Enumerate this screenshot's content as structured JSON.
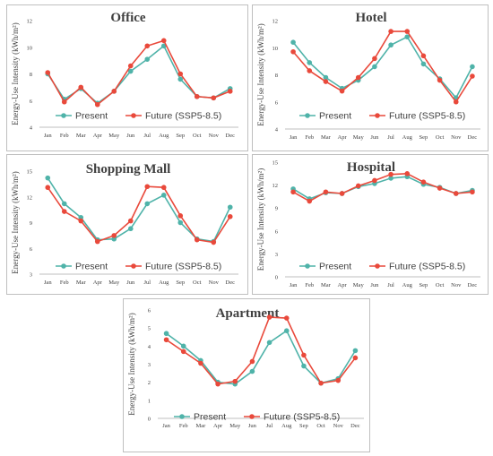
{
  "colors": {
    "present": "#4FB3A9",
    "future": "#E9493B"
  },
  "legend": {
    "present": "Present",
    "future": "Future (SSP5-8.5)"
  },
  "chart_data": [
    {
      "type": "line",
      "title": "Office",
      "ylabel": "Energy-Use Intensity (kWh/m²)",
      "ylim": [
        4,
        12
      ],
      "yticks": [
        4,
        6,
        8,
        10,
        12
      ],
      "categories": [
        "Jan",
        "Feb",
        "Mar",
        "Apr",
        "May",
        "Jun",
        "Jul",
        "Aug",
        "Sep",
        "Oct",
        "Nov",
        "Dec"
      ],
      "series": [
        {
          "name": "Present",
          "values": [
            8.0,
            6.1,
            6.9,
            5.8,
            6.7,
            8.2,
            9.1,
            10.1,
            7.6,
            6.3,
            6.2,
            6.9
          ]
        },
        {
          "name": "Future (SSP5-8.5)",
          "values": [
            8.1,
            5.9,
            7.0,
            5.7,
            6.7,
            8.6,
            10.1,
            10.5,
            8.0,
            6.3,
            6.2,
            6.7
          ]
        }
      ]
    },
    {
      "type": "line",
      "title": "Hotel",
      "ylabel": "Energy-Use Intensity (kWh/m²)",
      "ylim": [
        4,
        12
      ],
      "yticks": [
        4,
        6,
        8,
        10,
        12
      ],
      "categories": [
        "Jan",
        "Feb",
        "Mar",
        "Apr",
        "May",
        "Jun",
        "Jul",
        "Aug",
        "Sep",
        "Oct",
        "Nov",
        "Dec"
      ],
      "series": [
        {
          "name": "Present",
          "values": [
            10.4,
            8.9,
            7.8,
            7.0,
            7.6,
            8.6,
            10.2,
            10.8,
            8.8,
            7.7,
            6.3,
            8.6
          ]
        },
        {
          "name": "Future (SSP5-8.5)",
          "values": [
            9.7,
            8.3,
            7.5,
            6.8,
            7.8,
            9.2,
            11.2,
            11.2,
            9.4,
            7.6,
            6.0,
            7.9
          ]
        }
      ]
    },
    {
      "type": "line",
      "title": "Shopping Mall",
      "ylabel": "Energy-Use Intensity (kWh/m²)",
      "ylim": [
        3,
        15
      ],
      "yticks": [
        3,
        6,
        9,
        12,
        15
      ],
      "categories": [
        "Jan",
        "Feb",
        "Mar",
        "Apr",
        "May",
        "Jun",
        "Jul",
        "Aug",
        "Sep",
        "Oct",
        "Nov",
        "Dec"
      ],
      "series": [
        {
          "name": "Present",
          "values": [
            14.2,
            11.2,
            9.6,
            7.0,
            7.1,
            8.3,
            11.2,
            12.2,
            9.0,
            7.1,
            6.8,
            10.8
          ]
        },
        {
          "name": "Future (SSP5-8.5)",
          "values": [
            13.1,
            10.3,
            9.2,
            6.8,
            7.5,
            9.2,
            13.2,
            13.1,
            9.8,
            7.0,
            6.7,
            9.7
          ]
        }
      ]
    },
    {
      "type": "line",
      "title": "Hospital",
      "ylabel": "Energy-Use Intensity (kWh/m²)",
      "ylim": [
        0,
        15
      ],
      "yticks": [
        0,
        3,
        6,
        9,
        12,
        15
      ],
      "categories": [
        "Jan",
        "Feb",
        "Mar",
        "Apr",
        "May",
        "Jun",
        "Jul",
        "Aug",
        "Sep",
        "Oct",
        "Nov",
        "Dec"
      ],
      "series": [
        {
          "name": "Present",
          "values": [
            11.5,
            10.2,
            11.0,
            10.9,
            11.8,
            12.2,
            12.9,
            13.1,
            12.1,
            11.7,
            10.9,
            11.3
          ]
        },
        {
          "name": "Future (SSP5-8.5)",
          "values": [
            11.1,
            9.9,
            11.1,
            10.9,
            11.9,
            12.6,
            13.4,
            13.5,
            12.4,
            11.6,
            10.9,
            11.1
          ]
        }
      ]
    },
    {
      "type": "line",
      "title": "Apartment",
      "ylabel": "Energy-Use Intensity (kWh/m²)",
      "ylim": [
        0,
        6
      ],
      "yticks": [
        0,
        1,
        2,
        3,
        4,
        5,
        6
      ],
      "categories": [
        "Jan",
        "Feb",
        "Mar",
        "Apr",
        "May",
        "Jun",
        "Jul",
        "Aug",
        "Sep",
        "Oct",
        "Nov",
        "Dec"
      ],
      "series": [
        {
          "name": "Present",
          "values": [
            4.7,
            4.0,
            3.2,
            2.0,
            1.9,
            2.6,
            4.2,
            4.85,
            2.9,
            1.95,
            2.2,
            3.75
          ]
        },
        {
          "name": "Future (SSP5-8.5)",
          "values": [
            4.35,
            3.7,
            3.05,
            1.9,
            2.05,
            3.15,
            5.6,
            5.55,
            3.5,
            1.95,
            2.1,
            3.35
          ]
        }
      ]
    }
  ]
}
